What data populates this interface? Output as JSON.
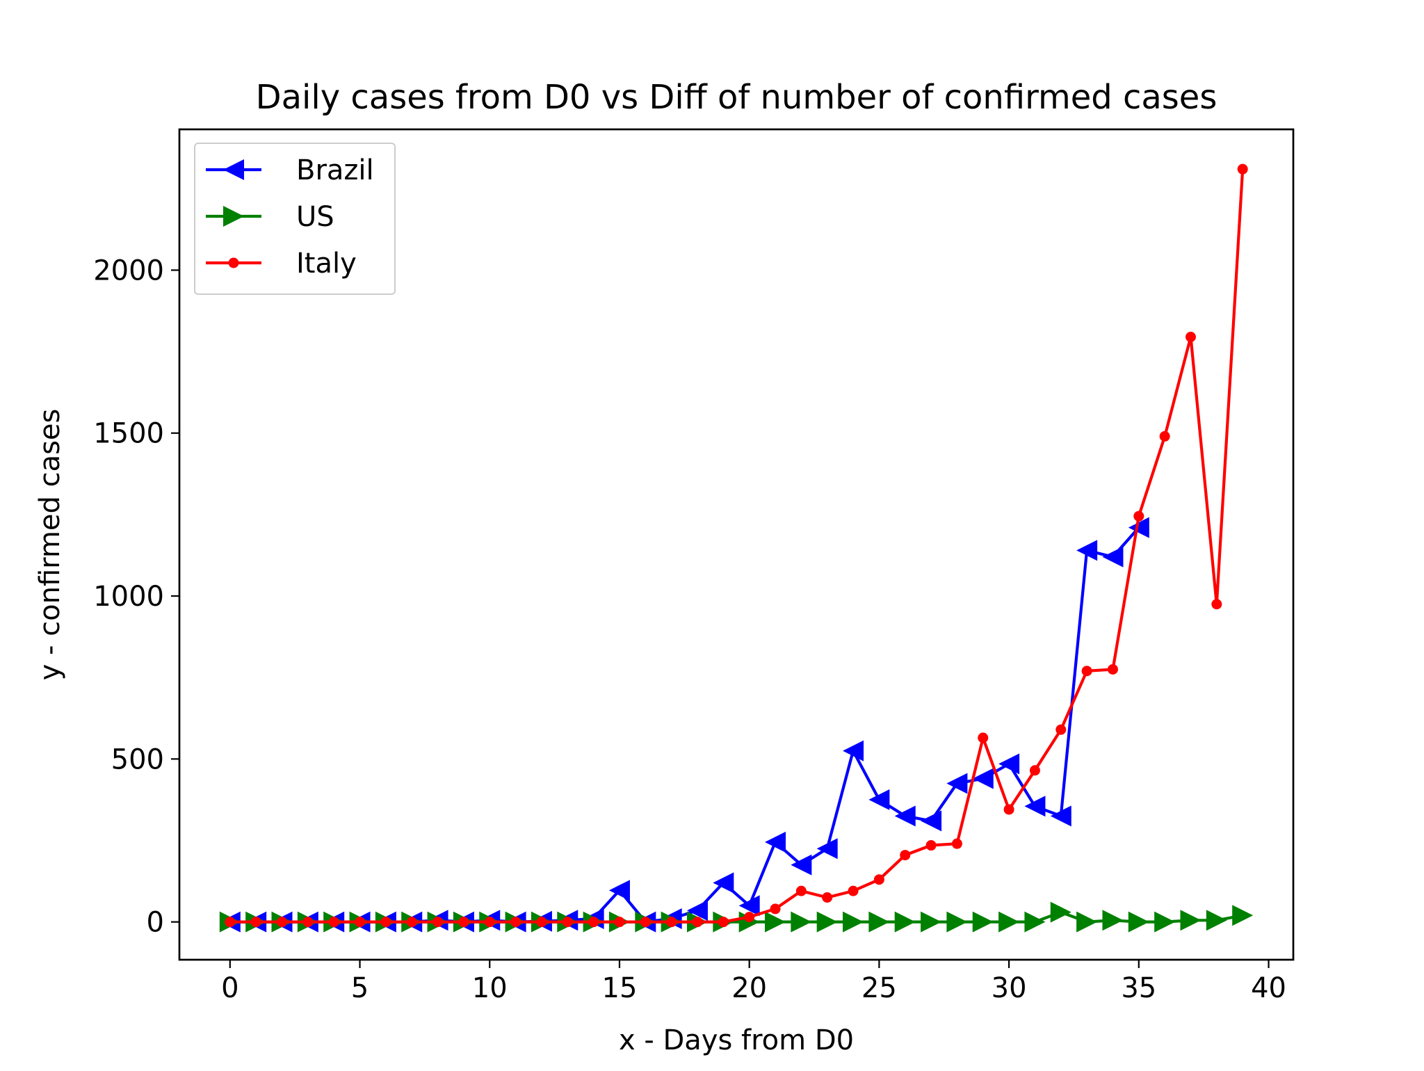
{
  "chart_data": {
    "type": "line",
    "title": "Daily cases from D0 vs Diff of number of confirmed cases",
    "xlabel": "x - Days from D0",
    "ylabel": "y - confirmed cases",
    "xlim": [
      -1.95,
      40.95
    ],
    "ylim": [
      -116,
      2432
    ],
    "x_ticks": [
      0,
      5,
      10,
      15,
      20,
      25,
      30,
      35,
      40
    ],
    "x_tick_labels": [
      "0",
      "5",
      "10",
      "15",
      "20",
      "25",
      "30",
      "35",
      "40"
    ],
    "y_ticks": [
      0,
      500,
      1000,
      1500,
      2000
    ],
    "y_tick_labels": [
      "0",
      "500",
      "1000",
      "1500",
      "2000"
    ],
    "grid": false,
    "legend_position": "top-left",
    "series": [
      {
        "name": "Brazil",
        "color": "#0000ff",
        "marker": "triangle-left",
        "x": [
          0,
          1,
          2,
          3,
          4,
          5,
          6,
          7,
          8,
          9,
          10,
          11,
          12,
          13,
          14,
          15,
          16,
          17,
          18,
          19,
          20,
          21,
          22,
          23,
          24,
          25,
          26,
          27,
          28,
          29,
          30,
          31,
          32,
          33,
          34,
          35
        ],
        "y": [
          0,
          0,
          0,
          0,
          0,
          0,
          0,
          0,
          5,
          0,
          5,
          0,
          2,
          5,
          10,
          97,
          0,
          10,
          35,
          120,
          50,
          245,
          175,
          225,
          525,
          375,
          325,
          310,
          425,
          440,
          485,
          355,
          325,
          1140,
          1120,
          1210
        ]
      },
      {
        "name": "US",
        "color": "#008000",
        "marker": "triangle-right",
        "x": [
          0,
          1,
          2,
          3,
          4,
          5,
          6,
          7,
          8,
          9,
          10,
          11,
          12,
          13,
          14,
          15,
          16,
          17,
          18,
          19,
          20,
          21,
          22,
          23,
          24,
          25,
          26,
          27,
          28,
          29,
          30,
          31,
          32,
          33,
          34,
          35,
          36,
          37,
          38,
          39
        ],
        "y": [
          0,
          0,
          0,
          0,
          0,
          0,
          0,
          0,
          0,
          0,
          0,
          0,
          0,
          0,
          0,
          0,
          0,
          0,
          0,
          0,
          0,
          0,
          0,
          0,
          0,
          0,
          0,
          0,
          0,
          0,
          0,
          0,
          30,
          0,
          5,
          0,
          0,
          5,
          5,
          20
        ]
      },
      {
        "name": "Italy",
        "color": "#ff0000",
        "marker": "dot",
        "x": [
          0,
          1,
          2,
          3,
          4,
          5,
          6,
          7,
          8,
          9,
          10,
          11,
          12,
          13,
          14,
          15,
          16,
          17,
          18,
          19,
          20,
          21,
          22,
          23,
          24,
          25,
          26,
          27,
          28,
          29,
          30,
          31,
          32,
          33,
          34,
          35,
          36,
          37,
          38,
          39
        ],
        "y": [
          0,
          0,
          0,
          0,
          0,
          0,
          0,
          0,
          0,
          0,
          0,
          0,
          0,
          0,
          0,
          0,
          0,
          0,
          0,
          0,
          15,
          40,
          95,
          75,
          95,
          130,
          205,
          235,
          240,
          565,
          345,
          465,
          590,
          770,
          775,
          1245,
          1490,
          1795,
          975,
          2310
        ]
      }
    ]
  }
}
